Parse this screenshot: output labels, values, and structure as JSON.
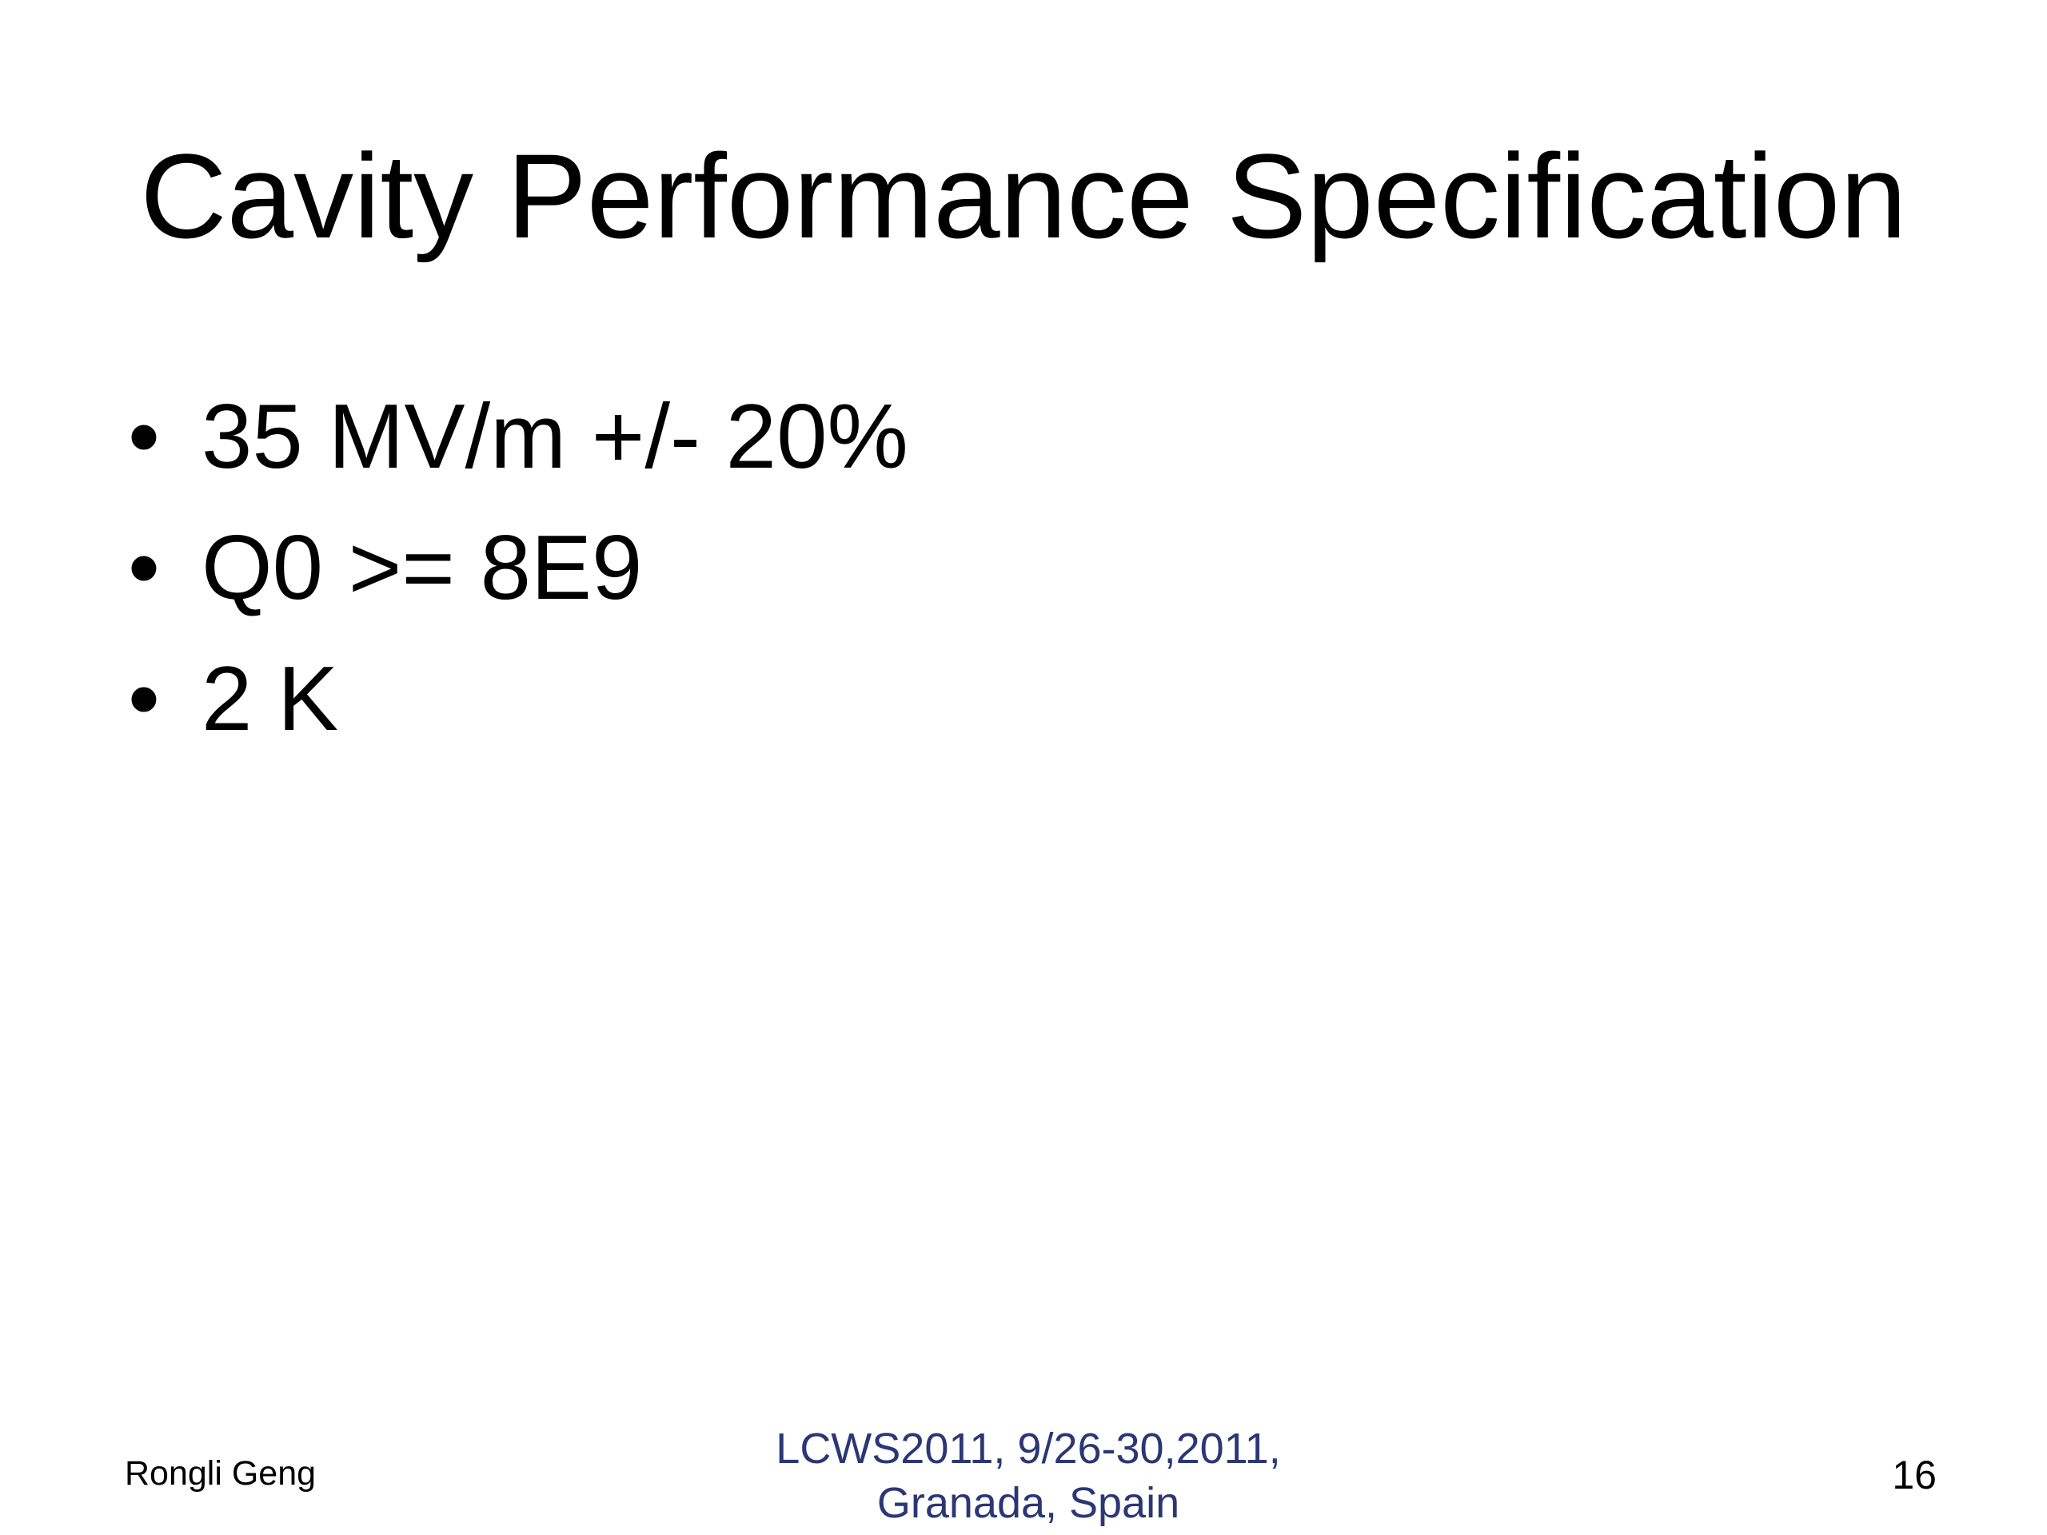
{
  "slide": {
    "title": "Cavity Performance Specification",
    "bullets": [
      "35 MV/m +/- 20%",
      "Q0 >= 8E9",
      "2 K"
    ],
    "footer": {
      "author": "Rongli Geng",
      "event": [
        "LCWS2011, 9/26-30,2011,",
        "Granada, Spain"
      ],
      "page": "16"
    }
  }
}
